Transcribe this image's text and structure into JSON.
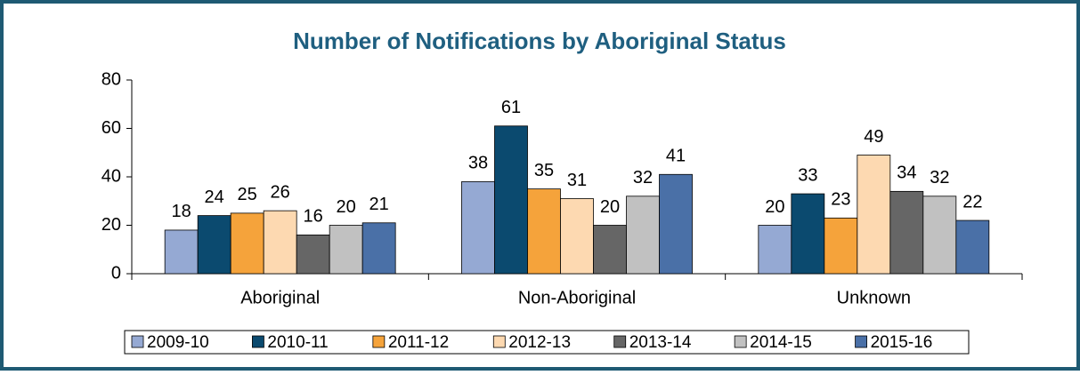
{
  "chart_data": {
    "type": "bar",
    "title": "Number of Notifications by Aboriginal Status",
    "categories": [
      "Aboriginal",
      "Non-Aboriginal",
      "Unknown"
    ],
    "series": [
      {
        "name": "2009-10",
        "color": "#95a9d3",
        "values": [
          18,
          38,
          20
        ]
      },
      {
        "name": "2010-11",
        "color": "#0b4a6f",
        "values": [
          24,
          61,
          33
        ]
      },
      {
        "name": "2011-12",
        "color": "#f5a33b",
        "values": [
          25,
          35,
          23
        ]
      },
      {
        "name": "2012-13",
        "color": "#fdd9b1",
        "values": [
          26,
          31,
          49
        ]
      },
      {
        "name": "2013-14",
        "color": "#666666",
        "values": [
          16,
          20,
          34
        ]
      },
      {
        "name": "2014-15",
        "color": "#c1c1c1",
        "values": [
          20,
          32,
          32
        ]
      },
      {
        "name": "2015-16",
        "color": "#4a70a7",
        "values": [
          21,
          41,
          22
        ]
      }
    ],
    "ylim": [
      0,
      80
    ],
    "yticks": [
      0,
      20,
      40,
      60,
      80
    ],
    "legend": "bottom"
  }
}
